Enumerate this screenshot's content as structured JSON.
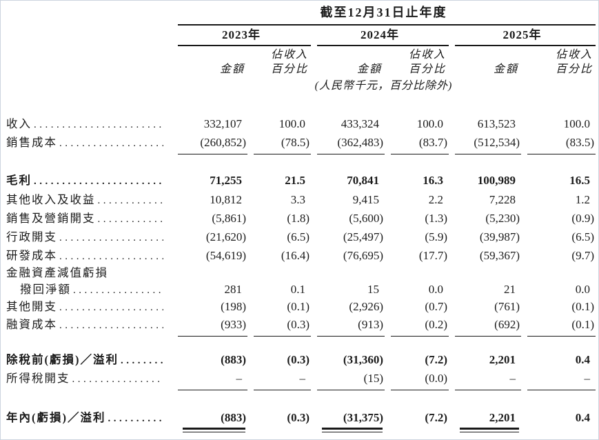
{
  "page": {
    "title": "截至12月31日止年度",
    "years": [
      {
        "label": "2023年"
      },
      {
        "label": "2024年"
      },
      {
        "label": "2025年"
      }
    ],
    "col_headers": {
      "pct_line1": "佔收入",
      "pct_line2": "百分比",
      "amount": "金額"
    },
    "unit_note": "(人民幣千元，百分比除外)",
    "leader_dots": "......................................................",
    "rows": [
      {
        "label": "收入",
        "values": [
          "332,107",
          "100.0",
          "433,324",
          "100.0",
          "613,523",
          "100.0"
        ]
      },
      {
        "label": "銷售成本",
        "values": [
          "(260,852)",
          "(78.5)",
          "(362,483)",
          "(83.7)",
          "(512,534)",
          "(83.5)"
        ]
      },
      {
        "label": "毛利",
        "values": [
          "71,255",
          "21.5",
          "70,841",
          "16.3",
          "100,989",
          "16.5"
        ]
      },
      {
        "label": "其他收入及收益",
        "values": [
          "10,812",
          "3.3",
          "9,415",
          "2.2",
          "7,228",
          "1.2"
        ]
      },
      {
        "label": "銷售及營銷開支",
        "values": [
          "(5,861)",
          "(1.8)",
          "(5,600)",
          "(1.3)",
          "(5,230)",
          "(0.9)"
        ]
      },
      {
        "label": "行政開支",
        "values": [
          "(21,620)",
          "(6.5)",
          "(25,497)",
          "(5.9)",
          "(39,987)",
          "(6.5)"
        ]
      },
      {
        "label": "研發成本",
        "values": [
          "(54,619)",
          "(16.4)",
          "(76,695)",
          "(17.7)",
          "(59,367)",
          "(9.7)"
        ]
      },
      {
        "label": "金融資產減值虧損",
        "values": null
      },
      {
        "label": "撥回淨額",
        "values": [
          "281",
          "0.1",
          "15",
          "0.0",
          "21",
          "0.0"
        ]
      },
      {
        "label": "其他開支",
        "values": [
          "(198)",
          "(0.1)",
          "(2,926)",
          "(0.7)",
          "(761)",
          "(0.1)"
        ]
      },
      {
        "label": "融資成本",
        "values": [
          "(933)",
          "(0.3)",
          "(913)",
          "(0.2)",
          "(692)",
          "(0.1)"
        ]
      },
      {
        "label": "除稅前(虧損)／溢利",
        "values": [
          "(883)",
          "(0.3)",
          "(31,360)",
          "(7.2)",
          "2,201",
          "0.4"
        ]
      },
      {
        "label": "所得稅開支",
        "values": [
          "–",
          "–",
          "(15)",
          "(0.0)",
          "–",
          "–"
        ]
      },
      {
        "label": "年內(虧損)／溢利",
        "values": [
          "(883)",
          "(0.3)",
          "(31,375)",
          "(7.2)",
          "2,201",
          "0.4"
        ]
      }
    ],
    "text_color": "#1b1b1b",
    "rule_color": "#181818"
  }
}
